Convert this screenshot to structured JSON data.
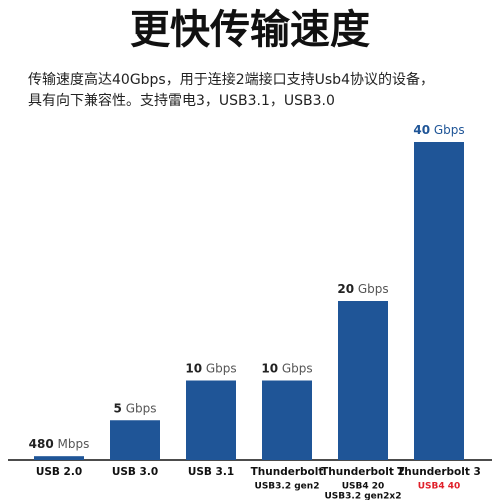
{
  "chart_data": {
    "type": "bar",
    "title": "更快传输速度",
    "subtitle": [
      "传输速度高达40Gbps，用于连接2端接口支持Usb4协议的设备，",
      "具有向下兼容性。支持雷电3，USB3.1，USB3.0"
    ],
    "categories": [
      "USB 2.0",
      "USB 3.0",
      "USB 3.1",
      "Thunderbolt",
      "Thunderbolt 2",
      "Thunderbolt 3"
    ],
    "category_sublabels": [
      [],
      [],
      [],
      [
        "USB3.2 gen2"
      ],
      [
        "USB4 20",
        "USB3.2 gen2x2"
      ],
      [
        "USB4 40"
      ]
    ],
    "values": [
      0.48,
      5,
      10,
      10,
      20,
      40
    ],
    "value_labels": [
      "480 Mbps",
      "5 Gbps",
      "10 Gbps",
      "10 Gbps",
      "20 Gbps",
      "40 Gbps"
    ],
    "color": "#1f5597",
    "highlight_color": "#e0202a",
    "ylim": [
      0,
      40
    ]
  }
}
